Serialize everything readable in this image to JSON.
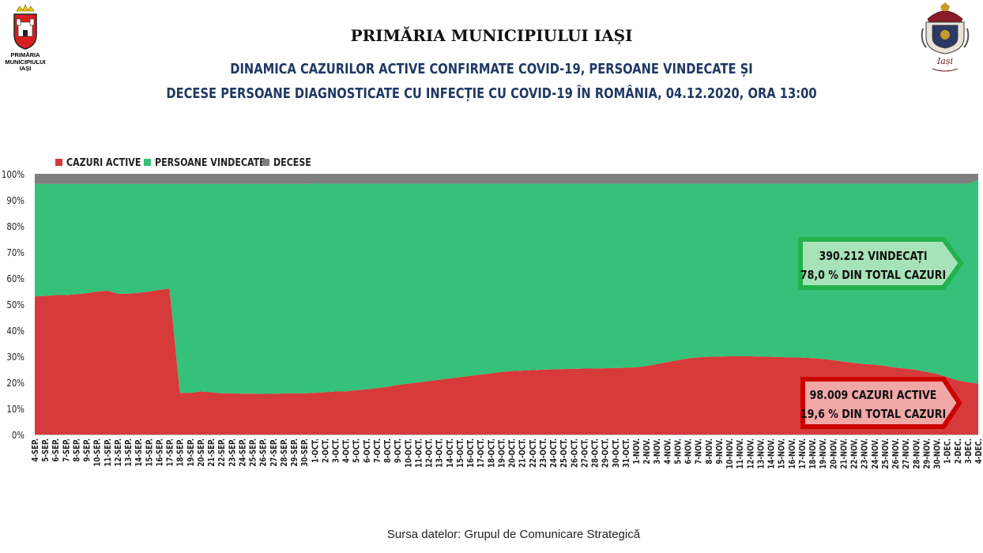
{
  "header": {
    "title": "PRIMĂRIA MUNICIPIULUI IAȘI",
    "subtitle_line1": "DINAMICA CAZURILOR ACTIVE CONFIRMATE COVID-19, PERSOANE VINDECATE ȘI",
    "subtitle_line2": "DECESE PERSOANE DIAGNOSTICATE CU INFECȚIE CU COVID-19 ÎN ROMÂNIA, 04.12.2020, ORA 13:00"
  },
  "logo_left": {
    "line1": "PRIMĂRIA",
    "line2": "MUNICIPIULUI",
    "line3": "IAȘI"
  },
  "logo_right": {
    "text": "Iași"
  },
  "source": "Sursa datelor: Grupul de Comunicare Strategică",
  "colors": {
    "active": "#d63a3a",
    "recovered": "#35c17a",
    "deaths": "#7f7f7f",
    "title": "#1f3864"
  },
  "callouts": {
    "recovered": {
      "line1": "390.212 VINDECAȚI",
      "line2": "78,0 % DIN TOTAL CAZURI",
      "color": "#22b14c"
    },
    "active": {
      "line1": "98.009 CAZURI ACTIVE",
      "line2": "19,6 % DIN TOTAL CAZURI",
      "color": "#cc0000"
    }
  },
  "chart_data": {
    "type": "area",
    "stacked": "percent",
    "legend_position": "top-left",
    "ylim": [
      0,
      100
    ],
    "yticks": [
      "0%",
      "10%",
      "20%",
      "30%",
      "40%",
      "50%",
      "60%",
      "70%",
      "80%",
      "90%",
      "100%"
    ],
    "x": [
      "4-SEP.",
      "5-SEP.",
      "6-SEP.",
      "7-SEP.",
      "8-SEP.",
      "9-SEP.",
      "10-SEP.",
      "11-SEP.",
      "12-SEP.",
      "13-SEP.",
      "14-SEP.",
      "15-SEP.",
      "16-SEP.",
      "17-SEP.",
      "18-SEP.",
      "19-SEP.",
      "20-SEP.",
      "21-SEP.",
      "22-SEP.",
      "23-SEP.",
      "24-SEP.",
      "25-SEP.",
      "26-SEP.",
      "27-SEP.",
      "28-SEP.",
      "29-SEP.",
      "30-SEP.",
      "1-OCT.",
      "2-OCT.",
      "3-OCT.",
      "4-OCT.",
      "5-OCT.",
      "6-OCT.",
      "7-OCT.",
      "8-OCT.",
      "9-OCT.",
      "10-OCT.",
      "11-OCT.",
      "12-OCT.",
      "13-OCT.",
      "14-OCT.",
      "15-OCT.",
      "16-OCT.",
      "17-OCT.",
      "18-OCT.",
      "19-OCT.",
      "20-OCT.",
      "21-OCT.",
      "22-OCT.",
      "23-OCT.",
      "24-OCT.",
      "25-OCT.",
      "26-OCT.",
      "27-OCT.",
      "28-OCT.",
      "29-OCT.",
      "30-OCT.",
      "31-OCT.",
      "1-NOV.",
      "2-NOV.",
      "3-NOV.",
      "4-NOV.",
      "5-NOV.",
      "6-NOV.",
      "7-NOV.",
      "8-NOV.",
      "9-NOV.",
      "10-NOV.",
      "11-NOV.",
      "12-NOV.",
      "13-NOV.",
      "14-NOV.",
      "15-NOV.",
      "16-NOV.",
      "17-NOV.",
      "18-NOV.",
      "19-NOV.",
      "20-NOV.",
      "21-NOV.",
      "22-NOV.",
      "23-NOV.",
      "24-NOV.",
      "25-NOV.",
      "26-NOV.",
      "27-NOV.",
      "28-NOV.",
      "29-NOV.",
      "30-NOV.",
      "1-DEC.",
      "2-DEC.",
      "3-DEC.",
      "4-DEC."
    ],
    "series": [
      {
        "name": "CAZURI ACTIVE",
        "values": [
          53.0,
          53.2,
          53.5,
          53.5,
          53.8,
          54.2,
          54.8,
          55.2,
          54.0,
          54.0,
          54.3,
          54.8,
          55.5,
          56.0,
          16.0,
          16.0,
          16.5,
          16.2,
          15.8,
          15.8,
          15.7,
          15.7,
          15.6,
          15.6,
          15.8,
          15.8,
          15.8,
          16.0,
          16.2,
          16.5,
          16.5,
          17.0,
          17.3,
          17.8,
          18.3,
          19.0,
          19.5,
          20.0,
          20.5,
          21.0,
          21.5,
          22.0,
          22.5,
          23.0,
          23.5,
          24.0,
          24.3,
          24.5,
          24.7,
          24.9,
          25.0,
          25.1,
          25.2,
          25.3,
          25.3,
          25.4,
          25.5,
          25.6,
          25.8,
          26.3,
          27.0,
          27.8,
          28.5,
          29.2,
          29.6,
          29.8,
          29.9,
          30.0,
          30.0,
          30.0,
          29.9,
          29.8,
          29.7,
          29.6,
          29.5,
          29.3,
          29.0,
          28.5,
          28.0,
          27.5,
          27.0,
          26.8,
          26.3,
          25.7,
          25.3,
          24.8,
          24.0,
          23.3,
          22.0,
          20.8,
          20.0,
          19.6
        ]
      },
      {
        "name": "PERSOANE VINDECATE",
        "values": [
          43.1,
          42.9,
          42.6,
          42.6,
          42.3,
          41.9,
          41.3,
          40.9,
          42.1,
          42.1,
          41.8,
          41.3,
          40.6,
          40.1,
          80.1,
          80.1,
          79.6,
          79.9,
          80.3,
          80.3,
          80.4,
          80.4,
          80.5,
          80.5,
          80.3,
          80.3,
          80.3,
          80.2,
          80.0,
          79.7,
          79.7,
          79.2,
          78.9,
          78.4,
          77.9,
          77.2,
          76.7,
          76.2,
          75.7,
          75.2,
          74.7,
          74.2,
          73.7,
          73.2,
          72.7,
          72.2,
          71.9,
          71.7,
          71.5,
          71.3,
          71.2,
          71.1,
          71.0,
          70.9,
          70.9,
          70.8,
          70.7,
          70.6,
          70.4,
          69.9,
          69.2,
          68.4,
          67.7,
          67.0,
          66.6,
          66.4,
          66.3,
          66.2,
          66.2,
          66.2,
          66.3,
          66.4,
          66.5,
          66.6,
          66.7,
          66.9,
          67.2,
          67.7,
          68.2,
          68.7,
          69.2,
          69.4,
          69.9,
          70.5,
          70.9,
          71.4,
          72.2,
          72.9,
          74.2,
          75.4,
          76.2,
          78.0
        ]
      },
      {
        "name": "DECESE",
        "values": [
          3.9,
          3.9,
          3.9,
          3.9,
          3.9,
          3.9,
          3.9,
          3.9,
          3.9,
          3.9,
          3.9,
          3.9,
          3.9,
          3.9,
          3.9,
          3.9,
          3.9,
          3.9,
          3.9,
          3.9,
          3.9,
          3.9,
          3.9,
          3.9,
          3.9,
          3.9,
          3.9,
          3.8,
          3.8,
          3.8,
          3.8,
          3.8,
          3.8,
          3.8,
          3.8,
          3.8,
          3.8,
          3.8,
          3.8,
          3.8,
          3.8,
          3.8,
          3.8,
          3.8,
          3.8,
          3.8,
          3.8,
          3.8,
          3.8,
          3.8,
          3.8,
          3.8,
          3.8,
          3.8,
          3.8,
          3.8,
          3.8,
          3.8,
          3.8,
          3.8,
          3.8,
          3.8,
          3.8,
          3.8,
          3.8,
          3.8,
          3.8,
          3.8,
          3.8,
          3.8,
          3.8,
          3.8,
          3.8,
          3.8,
          3.8,
          3.8,
          3.8,
          3.8,
          3.8,
          3.8,
          3.8,
          3.8,
          3.8,
          3.8,
          3.8,
          3.8,
          3.8,
          3.8,
          3.8,
          3.8,
          3.8,
          2.4
        ]
      }
    ]
  }
}
